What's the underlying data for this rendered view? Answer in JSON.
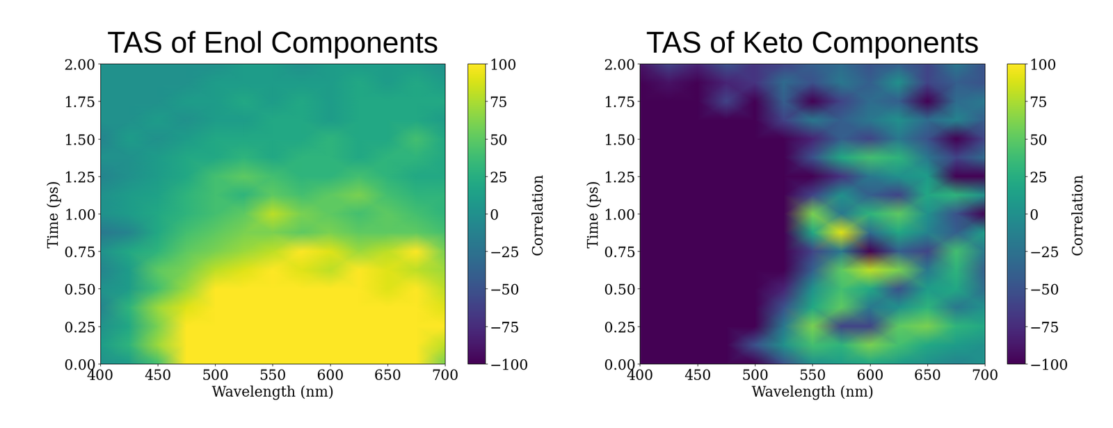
{
  "chart_data": [
    {
      "type": "heatmap",
      "title": "TAS of Enol Components",
      "x_label": "Wavelength (nm)",
      "y_label": "Time (ps)",
      "color": "viridis",
      "x": [
        400,
        425,
        450,
        475,
        500,
        525,
        550,
        575,
        600,
        625,
        650,
        675,
        700
      ],
      "y": [
        0,
        0.125,
        0.25,
        0.375,
        0.5,
        0.625,
        0.75,
        0.875,
        1.0,
        1.125,
        1.25,
        1.375,
        1.5,
        1.625,
        1.75,
        1.875,
        2.0
      ],
      "cells": [
        [
          0,
          10,
          40,
          100,
          100,
          100,
          100,
          100,
          100,
          100,
          100,
          100,
          60
        ],
        [
          10,
          30,
          70,
          100,
          100,
          100,
          100,
          100,
          100,
          100,
          100,
          100,
          80
        ],
        [
          0,
          20,
          60,
          100,
          100,
          100,
          100,
          100,
          100,
          100,
          100,
          100,
          100
        ],
        [
          -10,
          30,
          70,
          90,
          100,
          100,
          100,
          100,
          100,
          100,
          100,
          100,
          90
        ],
        [
          0,
          10,
          40,
          70,
          100,
          100,
          100,
          100,
          100,
          100,
          90,
          100,
          80
        ],
        [
          -10,
          10,
          50,
          60,
          80,
          90,
          100,
          90,
          80,
          100,
          90,
          80,
          70
        ],
        [
          0,
          20,
          30,
          50,
          60,
          70,
          80,
          100,
          90,
          70,
          80,
          100,
          60
        ],
        [
          -20,
          -10,
          20,
          40,
          50,
          60,
          60,
          50,
          60,
          50,
          50,
          50,
          40
        ],
        [
          0,
          10,
          20,
          30,
          40,
          50,
          80,
          60,
          50,
          40,
          50,
          40,
          30
        ],
        [
          0,
          10,
          15,
          30,
          40,
          30,
          50,
          40,
          50,
          60,
          40,
          30,
          30
        ],
        [
          -10,
          0,
          10,
          20,
          40,
          50,
          40,
          30,
          30,
          40,
          30,
          20,
          20
        ],
        [
          0,
          0,
          10,
          20,
          20,
          30,
          20,
          30,
          30,
          20,
          30,
          30,
          20
        ],
        [
          -10,
          10,
          0,
          10,
          20,
          20,
          20,
          20,
          30,
          20,
          20,
          40,
          20
        ],
        [
          0,
          0,
          10,
          0,
          10,
          10,
          20,
          20,
          10,
          20,
          20,
          20,
          10
        ],
        [
          0,
          0,
          0,
          10,
          10,
          20,
          10,
          20,
          10,
          20,
          20,
          20,
          20
        ],
        [
          0,
          0,
          0,
          0,
          10,
          10,
          10,
          10,
          10,
          20,
          10,
          20,
          10
        ],
        [
          0,
          0,
          0,
          0,
          0,
          10,
          10,
          0,
          10,
          10,
          10,
          10,
          0
        ]
      ],
      "xlim": [
        400,
        700
      ],
      "ylim": [
        0,
        2.0
      ],
      "xticks": [
        400,
        450,
        500,
        550,
        600,
        650,
        700
      ],
      "yticks": [
        {
          "value": 0,
          "label": "0.00"
        },
        {
          "value": 0.25,
          "label": "0.25"
        },
        {
          "value": 0.5,
          "label": "0.50"
        },
        {
          "value": 0.75,
          "label": "0.75"
        },
        {
          "value": 1.0,
          "label": "1.00"
        },
        {
          "value": 1.25,
          "label": "1.25"
        },
        {
          "value": 1.5,
          "label": "1.50"
        },
        {
          "value": 1.75,
          "label": "1.75"
        },
        {
          "value": 2.0,
          "label": "2.00"
        }
      ],
      "colorbar": {
        "label": "Correlation",
        "range": [
          -100,
          100
        ],
        "ticks": [
          {
            "value": -100,
            "label": "−100"
          },
          {
            "value": -75,
            "label": "−75"
          },
          {
            "value": -50,
            "label": "−50"
          },
          {
            "value": -25,
            "label": "−25"
          },
          0,
          25,
          50,
          75,
          100
        ]
      }
    },
    {
      "type": "heatmap",
      "title": "TAS of Keto Components",
      "x_label": "Wavelength (nm)",
      "y_label": "Time (ps)",
      "color": "viridis",
      "x": [
        400,
        425,
        450,
        475,
        500,
        525,
        550,
        575,
        600,
        625,
        650,
        675,
        700
      ],
      "y": [
        0,
        0.125,
        0.25,
        0.375,
        0.5,
        0.625,
        0.75,
        0.875,
        1.0,
        1.125,
        1.25,
        1.375,
        1.5,
        1.625,
        1.75,
        1.875,
        2.0
      ],
      "cells": [
        [
          -100,
          -100,
          -100,
          -100,
          -100,
          -50,
          0,
          10,
          20,
          10,
          0,
          -10,
          0
        ],
        [
          -100,
          -100,
          -100,
          -100,
          -50,
          0,
          40,
          30,
          60,
          40,
          20,
          10,
          0
        ],
        [
          -100,
          -100,
          -100,
          -100,
          -100,
          -20,
          60,
          -60,
          -60,
          50,
          60,
          30,
          20
        ],
        [
          -100,
          -100,
          -100,
          -100,
          -100,
          -50,
          20,
          50,
          -20,
          0,
          30,
          -20,
          0
        ],
        [
          -100,
          -100,
          -100,
          -100,
          -100,
          -80,
          0,
          40,
          20,
          -50,
          10,
          20,
          -30
        ],
        [
          -100,
          -100,
          -100,
          -100,
          -100,
          -100,
          -40,
          50,
          80,
          60,
          -20,
          30,
          -40
        ],
        [
          -100,
          -100,
          -100,
          -100,
          -100,
          -100,
          -60,
          -20,
          -100,
          -40,
          -60,
          40,
          -20
        ],
        [
          -100,
          -100,
          -100,
          -100,
          -100,
          -100,
          20,
          90,
          -30,
          20,
          -10,
          -40,
          10
        ],
        [
          -100,
          -100,
          -100,
          -100,
          -100,
          -100,
          60,
          -20,
          30,
          50,
          0,
          -50,
          -100
        ],
        [
          -100,
          -100,
          -100,
          -100,
          -100,
          -100,
          -60,
          0,
          -40,
          -60,
          20,
          30,
          0
        ],
        [
          -100,
          -100,
          -100,
          -100,
          -100,
          -100,
          -100,
          -70,
          -20,
          0,
          10,
          -100,
          -100
        ],
        [
          -100,
          -100,
          -100,
          -100,
          -100,
          -100,
          -50,
          20,
          40,
          30,
          -20,
          -60,
          -30
        ],
        [
          -100,
          -100,
          -100,
          -100,
          -100,
          -100,
          -80,
          -40,
          -60,
          -20,
          -50,
          -100,
          -60
        ],
        [
          -100,
          -100,
          -100,
          -100,
          -100,
          -60,
          -20,
          -40,
          -20,
          0,
          -30,
          -10,
          -40
        ],
        [
          -100,
          -100,
          -100,
          -60,
          -100,
          -40,
          -100,
          -60,
          -30,
          -40,
          -100,
          -30,
          -20
        ],
        [
          -100,
          -90,
          -100,
          -80,
          -70,
          -30,
          -50,
          -20,
          -40,
          0,
          -60,
          -40,
          -50
        ],
        [
          -90,
          -60,
          -80,
          -50,
          -70,
          -60,
          -40,
          -30,
          -50,
          -40,
          -60,
          -20,
          -50
        ]
      ],
      "xlim": [
        400,
        700
      ],
      "ylim": [
        0,
        2.0
      ],
      "xticks": [
        400,
        450,
        500,
        550,
        600,
        650,
        700
      ],
      "yticks": [
        {
          "value": 0,
          "label": "0.00"
        },
        {
          "value": 0.25,
          "label": "0.25"
        },
        {
          "value": 0.5,
          "label": "0.50"
        },
        {
          "value": 0.75,
          "label": "0.75"
        },
        {
          "value": 1.0,
          "label": "1.00"
        },
        {
          "value": 1.25,
          "label": "1.25"
        },
        {
          "value": 1.5,
          "label": "1.50"
        },
        {
          "value": 1.75,
          "label": "1.75"
        },
        {
          "value": 2.0,
          "label": "2.00"
        }
      ],
      "colorbar": {
        "label": "Correlation",
        "range": [
          -100,
          100
        ],
        "ticks": [
          {
            "value": -100,
            "label": "−100"
          },
          {
            "value": -75,
            "label": "−75"
          },
          {
            "value": -50,
            "label": "−50"
          },
          {
            "value": -25,
            "label": "−25"
          },
          0,
          25,
          50,
          75,
          100
        ]
      }
    }
  ]
}
